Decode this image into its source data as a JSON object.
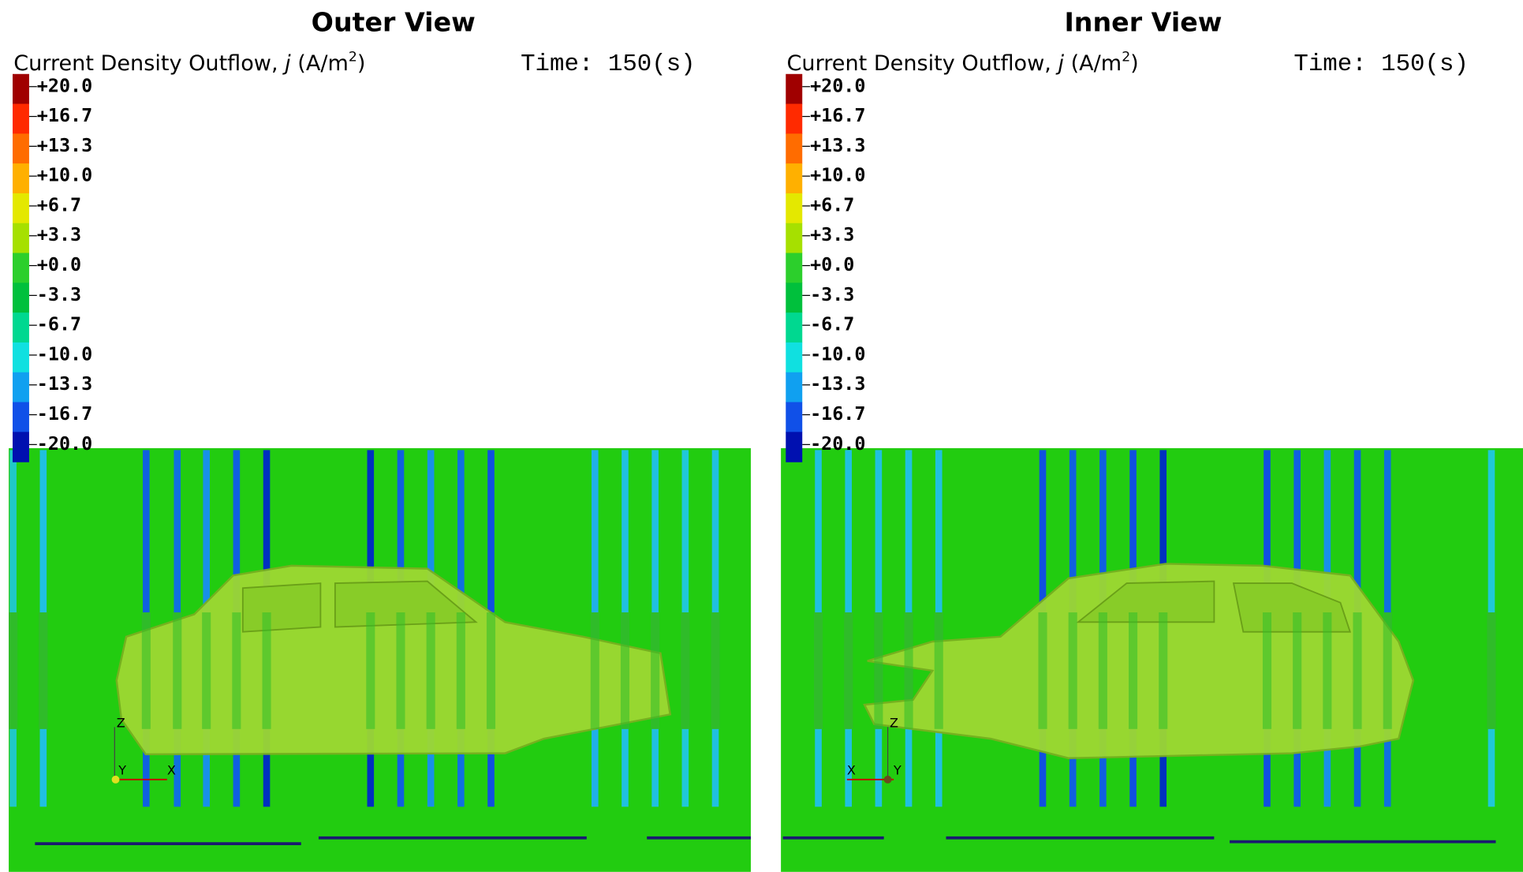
{
  "panels": [
    {
      "title": "Outer View",
      "label": {
        "text": "Current Density Outflow, ",
        "variable": "j",
        "unit": " (A/m",
        "exponent": "2",
        "close": ")"
      },
      "time": "Time: 150(s)",
      "legend": {
        "ticks": [
          "+20.0",
          "+16.7",
          "+13.3",
          "+10.0",
          "+6.7",
          "+3.3",
          "+0.0",
          "-3.3",
          "-6.7",
          "-10.0",
          "-13.3",
          "-16.7",
          "-20.0"
        ],
        "colors": [
          "#a00000",
          "#ff2a00",
          "#ff6c00",
          "#ffb000",
          "#e4e800",
          "#a6e000",
          "#2ccf2c",
          "#00c03c",
          "#00d890",
          "#10e0e0",
          "#10a0f0",
          "#1050e8",
          "#0010b0"
        ]
      },
      "triad": [
        "Z",
        "Y",
        "X"
      ]
    },
    {
      "title": "Inner View",
      "label": {
        "text": "Current Density Outflow, ",
        "variable": "j",
        "unit": " (A/m",
        "exponent": "2",
        "close": ")"
      },
      "time": "Time: 150(s)",
      "legend": {
        "ticks": [
          "+20.0",
          "+16.7",
          "+13.3",
          "+10.0",
          "+6.7",
          "+3.3",
          "+0.0",
          "-3.3",
          "-6.7",
          "-10.0",
          "-13.3",
          "-16.7",
          "-20.0"
        ],
        "colors": [
          "#a00000",
          "#ff2a00",
          "#ff6c00",
          "#ffb000",
          "#e4e800",
          "#a6e000",
          "#2ccf2c",
          "#00c03c",
          "#00d890",
          "#10e0e0",
          "#10a0f0",
          "#1050e8",
          "#0010b0"
        ]
      },
      "triad": [
        "Z",
        "X",
        "Y"
      ]
    }
  ]
}
